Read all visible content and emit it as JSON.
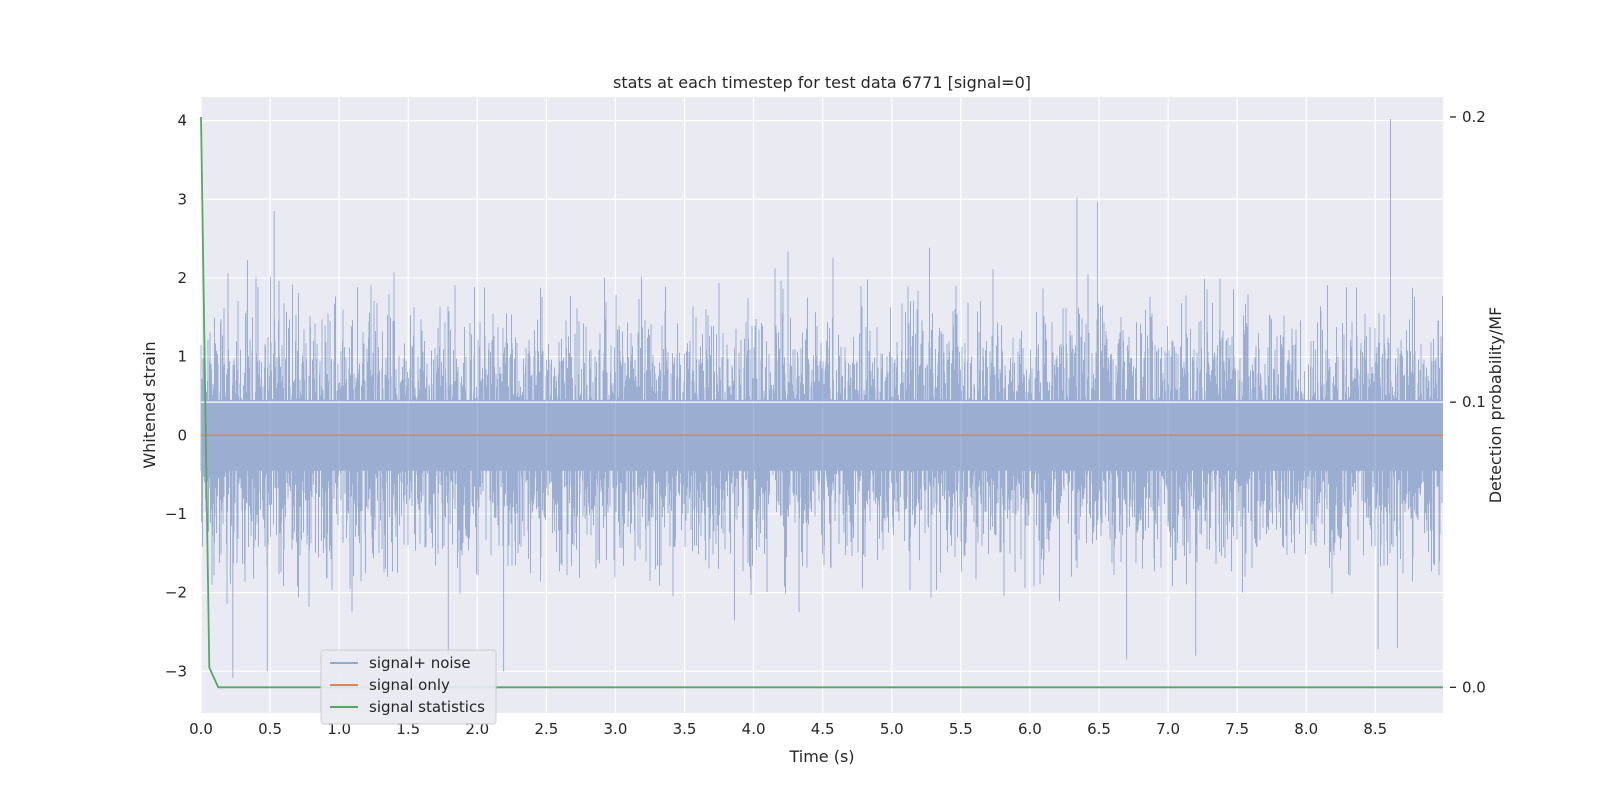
{
  "chart_data": {
    "type": "line",
    "title": "stats at each timestep for test data 6771 [signal=0]",
    "xlabel": "Time (s)",
    "ylabel": "Whitened strain",
    "y2label": "Detection probability/MF",
    "xlim": [
      0.0,
      8.99
    ],
    "ylim": [
      -3.53,
      4.3
    ],
    "y2lim": [
      -0.009,
      0.207
    ],
    "x_ticks": [
      "0.0",
      "0.5",
      "1.0",
      "1.5",
      "2.0",
      "2.5",
      "3.0",
      "3.5",
      "4.0",
      "4.5",
      "5.0",
      "5.5",
      "6.0",
      "6.5",
      "7.0",
      "7.5",
      "8.0",
      "8.5"
    ],
    "y_ticks": [
      "4",
      "3",
      "2",
      "1",
      "0",
      "−1",
      "−2",
      "−3"
    ],
    "y2_ticks": [
      "0.2",
      "0.1",
      "0.0"
    ],
    "grid": true,
    "legend_position": "lower-left",
    "colors": {
      "background": "#eaeaf2",
      "grid": "#ffffff",
      "signal_noise": "#4c72b0",
      "signal_only": "#dd8452",
      "signal_statistics": "#55a868"
    },
    "series": [
      {
        "name": "signal+ noise",
        "axis": "left",
        "description_values": "white noise, sampling approx 2048 Hz",
        "amplitude_range": [
          -3.1,
          4.02
        ],
        "peaks": [
          [
            0.53,
            2.85
          ],
          [
            6.34,
            3.02
          ],
          [
            6.49,
            2.97
          ],
          [
            8.61,
            4.02
          ],
          [
            1.79,
            -2.78
          ],
          [
            2.19,
            -3.0
          ],
          [
            0.23,
            -3.08
          ],
          [
            0.48,
            -3.0
          ],
          [
            6.7,
            -2.85
          ],
          [
            7.2,
            -2.8
          ],
          [
            8.52,
            -2.72
          ],
          [
            8.66,
            -2.7
          ]
        ]
      },
      {
        "name": "signal only",
        "axis": "left",
        "x": [
          0.0,
          8.99
        ],
        "y": [
          0.0,
          0.0
        ]
      },
      {
        "name": "signal statistics",
        "axis": "right",
        "x": [
          0.0,
          0.06,
          0.125,
          0.5,
          1.0,
          2.0,
          3.0,
          4.0,
          5.0,
          6.0,
          7.0,
          8.0,
          8.99
        ],
        "y": [
          0.2,
          0.007,
          0.0,
          0.0,
          0.0,
          0.0,
          0.0,
          0.0,
          0.0,
          0.0,
          0.0,
          0.0,
          0.0
        ]
      }
    ],
    "right_axis_gridline_at": 0.1
  }
}
